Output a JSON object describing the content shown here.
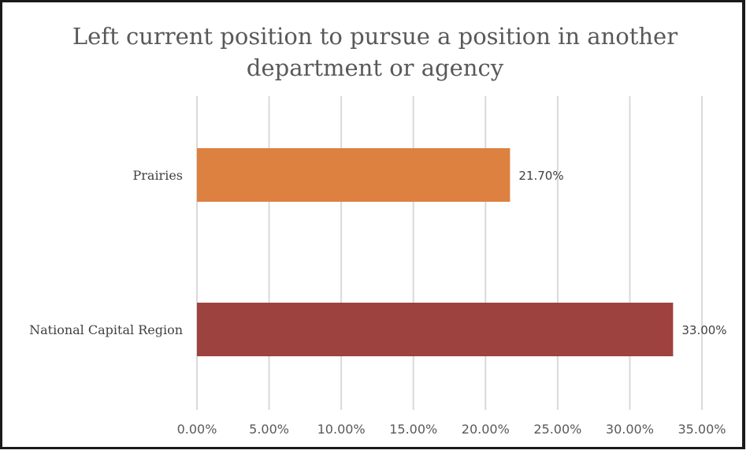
{
  "chart_data": {
    "type": "bar",
    "orientation": "horizontal",
    "title_lines": [
      "Left current position to pursue a position in another",
      "department or agency"
    ],
    "categories": [
      "Prairies",
      "National Capital Region"
    ],
    "values": [
      21.7,
      33.0
    ],
    "data_labels": [
      "21.70%",
      "33.00%"
    ],
    "colors": [
      "#dd8140",
      "#9e4240"
    ],
    "xlim": [
      0,
      35
    ],
    "x_ticks": [
      0,
      5,
      10,
      15,
      20,
      25,
      30,
      35
    ],
    "x_tick_labels": [
      "0.00%",
      "5.00%",
      "10.00%",
      "15.00%",
      "20.00%",
      "25.00%",
      "30.00%",
      "35.00%"
    ],
    "grid": "vertical",
    "legend": "none"
  }
}
